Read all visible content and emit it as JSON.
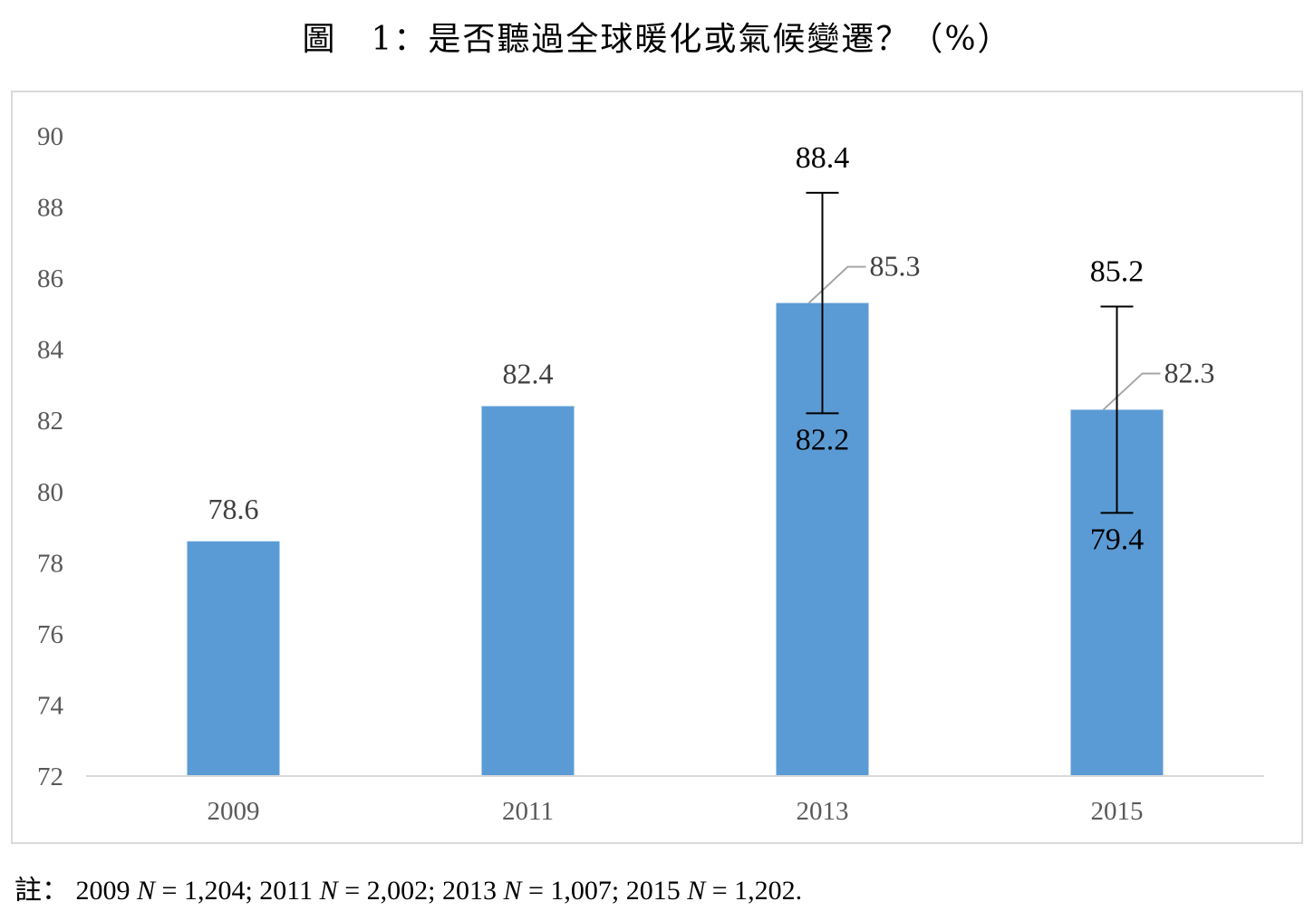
{
  "title": "圖　1：是否聽過全球暖化或氣候變遷？（%）",
  "chart_data": {
    "type": "bar",
    "title": "圖　1：是否聽過全球暖化或氣候變遷？（%）",
    "categories": [
      "2009",
      "2011",
      "2013",
      "2015"
    ],
    "values": [
      78.6,
      82.4,
      85.3,
      82.3
    ],
    "value_labels": [
      "78.6",
      "82.4",
      "85.3",
      "82.3"
    ],
    "ylim": [
      72,
      90
    ],
    "yticks": [
      "72",
      "74",
      "76",
      "78",
      "80",
      "82",
      "84",
      "86",
      "88",
      "90"
    ],
    "bar_color": "#5b9bd5",
    "grid": false,
    "error_bars": [
      {
        "category": "2013",
        "upper": 88.4,
        "lower": 82.2,
        "upper_label": "88.4",
        "lower_label": "82.2"
      },
      {
        "category": "2015",
        "upper": 85.2,
        "lower": 79.4,
        "upper_label": "85.2",
        "lower_label": "79.4"
      }
    ]
  },
  "note": {
    "prefix": "註：",
    "items": [
      {
        "year": "2009",
        "n": "1,204",
        "sep": ";"
      },
      {
        "year": "2011",
        "n": "2,002",
        "sep": ";"
      },
      {
        "year": "2013",
        "n": "1,007",
        "sep": ";"
      },
      {
        "year": "2015",
        "n": "1,202",
        "sep": "."
      }
    ]
  }
}
